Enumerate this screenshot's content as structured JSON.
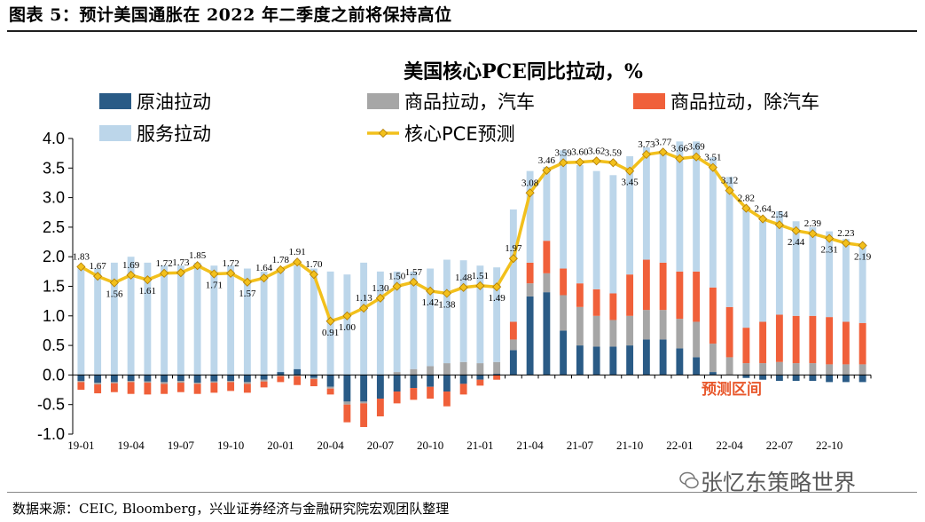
{
  "figure": {
    "title": "图表 5：预计美国通胀在 2022 年二季度之前将保持高位",
    "source": "数据来源：CEIC, Bloomberg，兴业证券经济与金融研究院宏观团队整理",
    "watermark": "张忆东策略世界",
    "watermark_icon": "wechat-icon"
  },
  "colors": {
    "crude": "#2a5b86",
    "goods_autos": "#a6a6a6",
    "goods_ex_autos": "#f0603a",
    "services": "#bcd6ea",
    "pce_line": "#f2c01c",
    "annotation": "#e8572b"
  },
  "chart_data": {
    "type": "bar",
    "stacked": true,
    "title": "美国核心PCE同比拉动，%",
    "ylim": [
      -1.0,
      4.0
    ],
    "yticks": [
      "-1.0",
      "-0.5",
      "0.0",
      "0.5",
      "1.0",
      "1.5",
      "2.0",
      "2.5",
      "3.0",
      "3.5",
      "4.0"
    ],
    "ytick_values": [
      -1.0,
      -0.5,
      0.0,
      0.5,
      1.0,
      1.5,
      2.0,
      2.5,
      3.0,
      3.5,
      4.0
    ],
    "xtick_labels": [
      "19-01",
      "19-04",
      "19-07",
      "19-10",
      "20-01",
      "20-04",
      "20-07",
      "20-10",
      "21-01",
      "21-04",
      "21-07",
      "21-10",
      "22-01",
      "22-04",
      "22-07",
      "22-10"
    ],
    "xtick_every": 3,
    "n_periods": 48,
    "forecast_annotation": "预测区间",
    "legend": [
      "原油拉动",
      "商品拉动，汽车",
      "商品拉动，除汽车",
      "服务拉动",
      "核心PCE预测"
    ],
    "series": [
      {
        "name": "原油拉动",
        "values": [
          -0.1,
          -0.13,
          -0.12,
          -0.1,
          -0.11,
          -0.12,
          -0.1,
          -0.13,
          -0.11,
          -0.1,
          -0.12,
          -0.08,
          0.05,
          0.1,
          -0.05,
          -0.2,
          -0.45,
          -0.45,
          -0.4,
          -0.28,
          -0.22,
          -0.2,
          -0.28,
          -0.15,
          -0.08,
          0.02,
          0.42,
          1.33,
          1.4,
          0.75,
          0.5,
          0.48,
          0.48,
          0.5,
          0.6,
          0.6,
          0.45,
          0.3,
          0.05,
          0.0,
          -0.05,
          -0.08,
          -0.1,
          -0.1,
          -0.1,
          -0.12,
          -0.12,
          -0.12
        ]
      },
      {
        "name": "商品拉动，汽车",
        "values": [
          -0.02,
          -0.03,
          -0.02,
          -0.02,
          -0.02,
          -0.03,
          -0.03,
          -0.02,
          -0.02,
          -0.02,
          -0.03,
          -0.03,
          -0.02,
          -0.02,
          -0.02,
          -0.03,
          -0.05,
          -0.03,
          0.0,
          0.05,
          0.1,
          0.15,
          0.2,
          0.22,
          0.2,
          0.2,
          0.18,
          0.22,
          0.32,
          0.6,
          0.65,
          0.52,
          0.45,
          0.5,
          0.5,
          0.5,
          0.5,
          0.6,
          0.48,
          0.3,
          0.2,
          0.2,
          0.22,
          0.2,
          0.2,
          0.18,
          0.18,
          0.18
        ]
      },
      {
        "name": "商品拉动，除汽车",
        "values": [
          -0.13,
          -0.15,
          -0.15,
          -0.2,
          -0.2,
          -0.17,
          -0.16,
          -0.17,
          -0.17,
          -0.15,
          -0.15,
          -0.1,
          -0.1,
          -0.15,
          -0.12,
          -0.1,
          -0.3,
          -0.4,
          -0.3,
          -0.2,
          -0.2,
          -0.2,
          -0.25,
          -0.18,
          -0.1,
          -0.08,
          0.3,
          0.35,
          0.55,
          0.45,
          0.4,
          0.45,
          0.45,
          0.7,
          0.85,
          0.8,
          0.8,
          0.85,
          0.95,
          0.85,
          0.6,
          0.7,
          0.8,
          0.8,
          0.8,
          0.8,
          0.72,
          0.7
        ]
      },
      {
        "name": "服务拉动",
        "values": [
          1.85,
          1.8,
          1.9,
          2.0,
          1.9,
          1.85,
          1.85,
          1.9,
          1.85,
          1.85,
          1.8,
          1.75,
          1.75,
          1.75,
          1.8,
          1.75,
          1.7,
          1.9,
          1.75,
          1.7,
          1.65,
          1.65,
          1.75,
          1.72,
          1.65,
          1.6,
          1.9,
          1.55,
          1.25,
          2.0,
          2.0,
          2.0,
          2.0,
          2.0,
          1.9,
          1.9,
          2.2,
          2.2,
          2.2,
          2.2,
          2.0,
          1.7,
          1.75,
          1.6,
          1.5,
          1.45,
          1.4,
          1.3
        ]
      },
      {
        "name": "核心PCE预测",
        "type": "line",
        "values": [
          1.83,
          1.67,
          1.56,
          1.69,
          1.61,
          1.72,
          1.73,
          1.85,
          1.71,
          1.72,
          1.57,
          1.64,
          1.78,
          1.91,
          1.7,
          0.91,
          1.0,
          1.13,
          1.3,
          1.5,
          1.57,
          1.42,
          1.38,
          1.48,
          1.51,
          1.49,
          1.97,
          3.08,
          3.46,
          3.59,
          3.6,
          3.62,
          3.59,
          3.45,
          3.73,
          3.77,
          3.66,
          3.69,
          3.51,
          3.12,
          2.82,
          2.64,
          2.54,
          2.44,
          2.39,
          2.31,
          2.23,
          2.19
        ],
        "labels": [
          "1.83",
          "1.67",
          "1.56",
          "1.69",
          "1.61",
          "1.72",
          "1.73",
          "1.85",
          "1.71",
          "1.72",
          "1.57",
          "1.64",
          "1.78",
          "1.91",
          "1.70",
          "0.91",
          "1.00",
          "1.13",
          "1.30",
          "1.50",
          "1.57",
          "1.42",
          "1.38",
          "1.48",
          "1.51",
          "1.49",
          "1.97",
          "3.08",
          "3.46",
          "3.59",
          "3.60",
          "3.62",
          "3.59",
          "3.45",
          "3.73",
          "3.77",
          "3.66",
          "3.69",
          "3.51",
          "3.12",
          "2.82",
          "2.64",
          "2.54",
          "2.44",
          "2.39",
          "2.31",
          "2.23",
          "2.19"
        ]
      }
    ]
  }
}
